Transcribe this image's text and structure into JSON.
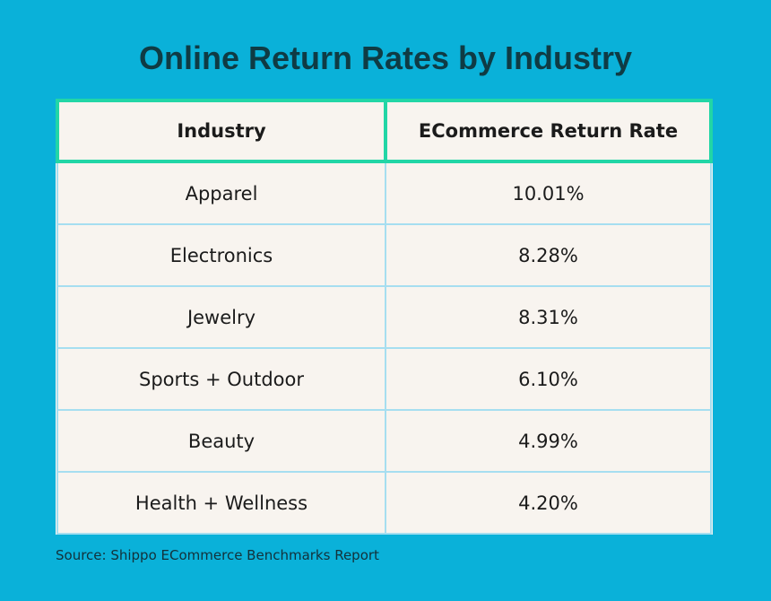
{
  "title": "Online Return Rates by Industry",
  "table": {
    "header": [
      "Industry",
      "ECommerce Return Rate"
    ],
    "rows": [
      [
        "Apparel",
        "10.01%"
      ],
      [
        "Electronics",
        "8.28%"
      ],
      [
        "Jewelry",
        "8.31%"
      ],
      [
        "Sports + Outdoor",
        "6.10%"
      ],
      [
        "Beauty",
        "4.99%"
      ],
      [
        "Health + Wellness",
        "4.20%"
      ]
    ]
  },
  "source": "Source: Shippo ECommerce Benchmarks Report"
}
